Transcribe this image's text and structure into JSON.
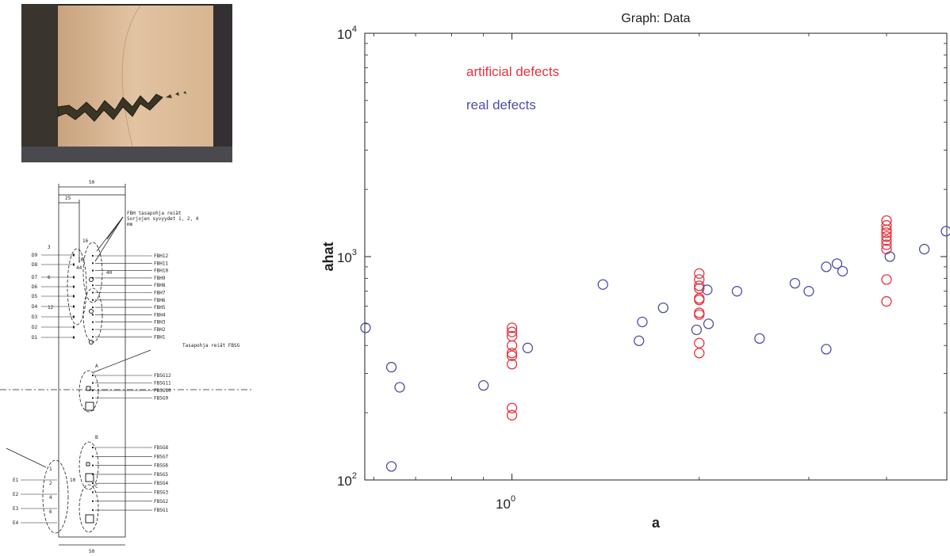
{
  "photo": {
    "description_icon": "cracked-specimen-photo"
  },
  "drawing": {
    "dims": {
      "top_width": "50",
      "top_half": "25",
      "bottom_width": "50"
    },
    "note_fbh": "FBH tasapohja reiät\nSorjojen syvyydet 1, 2, 4\nmm",
    "note_fbsg": "Tasapohja reiät FBSG",
    "left_labels_top": [
      "D9",
      "D8",
      "D7",
      "D6",
      "D5",
      "D4",
      "D3",
      "D2",
      "D1"
    ],
    "left_numbers_top": [
      "3",
      "6",
      "12"
    ],
    "right_labels_top": [
      "FBH12",
      "FBH11",
      "FBH10",
      "FBH9",
      "FBH8",
      "FBH7",
      "FBH6",
      "FBH5",
      "FBH4",
      "FBH3",
      "FBH2",
      "FBH1"
    ],
    "right_labels_mid": [
      "FBSG12",
      "FBSG11",
      "FBSG10",
      "FBSG9"
    ],
    "right_labels_bottom": [
      "FBSG8",
      "FBSG7",
      "FBSG6",
      "FBSG5",
      "FBSG4",
      "FBSG3",
      "FBSG2",
      "FBSG1"
    ],
    "left_labels_bottom": [
      "E1",
      "E2",
      "E3",
      "E4"
    ],
    "left_numbers_bottom": [
      "1",
      "2",
      "4",
      "6"
    ],
    "group_letters": [
      "A",
      "B",
      "C"
    ],
    "small_dims": [
      "16",
      "10",
      "44",
      "40",
      "10"
    ]
  },
  "chart_data": {
    "type": "scatter",
    "title": "Graph: Data",
    "xlabel": "a",
    "ylabel": "ahat",
    "x_scale": "log",
    "y_scale": "log",
    "xlim": [
      0.58,
      5.0
    ],
    "ylim": [
      100,
      10000
    ],
    "x_ticks": [
      {
        "value": 1,
        "base": "10",
        "exp": "0"
      }
    ],
    "y_ticks": [
      {
        "value": 100,
        "base": "10",
        "exp": "2"
      },
      {
        "value": 1000,
        "base": "10",
        "exp": "3"
      },
      {
        "value": 10000,
        "base": "10",
        "exp": "4"
      }
    ],
    "grid": false,
    "legend_position": "top-left",
    "series": [
      {
        "name": "artificial defects",
        "color": "#e8323c",
        "points": [
          [
            1.0,
            480
          ],
          [
            1.0,
            460
          ],
          [
            1.0,
            440
          ],
          [
            1.0,
            400
          ],
          [
            1.0,
            370
          ],
          [
            1.0,
            360
          ],
          [
            1.0,
            330
          ],
          [
            1.0,
            210
          ],
          [
            1.0,
            195
          ],
          [
            2.0,
            840
          ],
          [
            2.0,
            790
          ],
          [
            2.0,
            740
          ],
          [
            2.0,
            720
          ],
          [
            2.0,
            650
          ],
          [
            2.0,
            640
          ],
          [
            2.0,
            560
          ],
          [
            2.0,
            550
          ],
          [
            2.0,
            410
          ],
          [
            2.0,
            370
          ],
          [
            4.0,
            1450
          ],
          [
            4.0,
            1380
          ],
          [
            4.0,
            1320
          ],
          [
            4.0,
            1280
          ],
          [
            4.0,
            1230
          ],
          [
            4.0,
            1180
          ],
          [
            4.0,
            1130
          ],
          [
            4.0,
            1080
          ],
          [
            4.0,
            790
          ],
          [
            4.0,
            630
          ]
        ]
      },
      {
        "name": "real defects",
        "color": "#4e4ea8",
        "points": [
          [
            0.58,
            480
          ],
          [
            0.64,
            320
          ],
          [
            0.66,
            260
          ],
          [
            0.64,
            115
          ],
          [
            0.9,
            265
          ],
          [
            1.06,
            390
          ],
          [
            1.4,
            750
          ],
          [
            1.6,
            420
          ],
          [
            1.62,
            510
          ],
          [
            1.75,
            590
          ],
          [
            1.98,
            470
          ],
          [
            2.06,
            710
          ],
          [
            2.07,
            500
          ],
          [
            2.3,
            700
          ],
          [
            2.5,
            430
          ],
          [
            2.85,
            760
          ],
          [
            3.0,
            700
          ],
          [
            3.2,
            385
          ],
          [
            3.2,
            900
          ],
          [
            3.33,
            930
          ],
          [
            3.4,
            860
          ],
          [
            4.05,
            1000
          ],
          [
            4.6,
            1080
          ],
          [
            5.0,
            1300
          ]
        ]
      }
    ]
  }
}
